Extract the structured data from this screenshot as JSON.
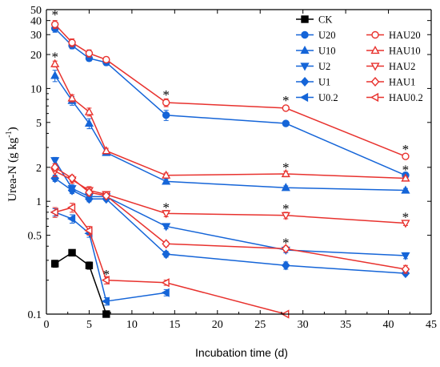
{
  "chart_data": {
    "type": "line",
    "title": "",
    "xlabel": "Incubation time (d)",
    "ylabel": {
      "main": "Urea-N (g kg",
      "sup": "-1",
      "close": ")"
    },
    "xlim": [
      0,
      45
    ],
    "ylim": [
      0.1,
      50
    ],
    "yscale": "log",
    "x_ticks": [
      0,
      5,
      10,
      15,
      20,
      25,
      30,
      35,
      40,
      45
    ],
    "y_ticks": [
      {
        "v": 0.1,
        "label": "0.1"
      },
      {
        "v": 0.5,
        "label": "0.5"
      },
      {
        "v": 1,
        "label": "1"
      },
      {
        "v": 2,
        "label": "2"
      },
      {
        "v": 5,
        "label": "5"
      },
      {
        "v": 10,
        "label": "10"
      },
      {
        "v": 20,
        "label": "20"
      },
      {
        "v": 30,
        "label": "30"
      },
      {
        "v": 40,
        "label": "40"
      },
      {
        "v": 50,
        "label": "50"
      }
    ],
    "legend_position": "top-right",
    "grid": false,
    "series": [
      {
        "name": "CK",
        "color": "#000000",
        "marker": "square",
        "filled": true,
        "x": [
          1,
          3,
          5,
          7
        ],
        "y": [
          0.28,
          0.35,
          0.27,
          0.1
        ],
        "err": [
          0.02,
          0.02,
          0.02,
          0
        ]
      },
      {
        "name": "U20",
        "color": "#1565d8",
        "marker": "circle",
        "filled": true,
        "x": [
          1,
          3,
          5,
          7,
          14,
          28,
          42
        ],
        "y": [
          34,
          24,
          18.5,
          17,
          5.8,
          4.9,
          1.7
        ],
        "err": [
          2.5,
          1.5,
          1,
          1,
          0.6,
          0.25,
          0.1
        ]
      },
      {
        "name": "U10",
        "color": "#1565d8",
        "marker": "triangle-up",
        "filled": true,
        "x": [
          1,
          3,
          5,
          7,
          14,
          28,
          42
        ],
        "y": [
          13,
          7.8,
          4.9,
          2.7,
          1.5,
          1.32,
          1.25
        ],
        "err": [
          1.5,
          0.7,
          0.5,
          0.15,
          0.08,
          0.05,
          0.05
        ]
      },
      {
        "name": "U2",
        "color": "#1565d8",
        "marker": "triangle-down",
        "filled": true,
        "x": [
          1,
          3,
          5,
          7,
          14,
          28,
          42
        ],
        "y": [
          2.3,
          1.3,
          1.1,
          1.1,
          0.6,
          0.37,
          0.33
        ],
        "err": [
          0.15,
          0.1,
          0.08,
          0.05,
          0.03,
          0.02,
          0.02
        ]
      },
      {
        "name": "U1",
        "color": "#1565d8",
        "marker": "diamond",
        "filled": true,
        "x": [
          1,
          3,
          5,
          7,
          14,
          28,
          42
        ],
        "y": [
          1.6,
          1.25,
          1.05,
          1.05,
          0.34,
          0.27,
          0.23
        ],
        "err": [
          0.1,
          0.08,
          0.06,
          0.04,
          0.02,
          0.02,
          0.01
        ]
      },
      {
        "name": "U0.2",
        "color": "#1565d8",
        "marker": "triangle-left",
        "filled": true,
        "x": [
          1,
          3,
          5,
          7,
          14
        ],
        "y": [
          0.8,
          0.7,
          0.52,
          0.13,
          0.155
        ],
        "err": [
          0.06,
          0.06,
          0.04,
          0.01,
          0.01
        ]
      },
      {
        "name": "HAU20",
        "color": "#e8322e",
        "marker": "circle",
        "filled": false,
        "x": [
          1,
          3,
          5,
          7,
          14,
          28,
          42
        ],
        "y": [
          37,
          25.5,
          20.5,
          18,
          7.5,
          6.7,
          2.5
        ],
        "err": [
          3,
          2,
          1.5,
          1,
          0.6,
          0.3,
          0.12
        ]
      },
      {
        "name": "HAU10",
        "color": "#e8322e",
        "marker": "triangle-up",
        "filled": false,
        "x": [
          1,
          3,
          5,
          7,
          14,
          28,
          42
        ],
        "y": [
          16.5,
          8.2,
          6.2,
          2.8,
          1.7,
          1.75,
          1.6
        ],
        "err": [
          1,
          0.6,
          0.5,
          0.15,
          0.08,
          0.1,
          0.06
        ]
      },
      {
        "name": "HAU2",
        "color": "#e8322e",
        "marker": "triangle-down",
        "filled": false,
        "x": [
          1,
          3,
          5,
          7,
          14,
          28,
          42
        ],
        "y": [
          1.85,
          1.55,
          1.25,
          1.15,
          0.78,
          0.75,
          0.64
        ],
        "err": [
          0.2,
          0.1,
          0.1,
          0.06,
          0.05,
          0.05,
          0.03
        ]
      },
      {
        "name": "HAU1",
        "color": "#e8322e",
        "marker": "diamond",
        "filled": false,
        "x": [
          1,
          3,
          5,
          7,
          14,
          28,
          42
        ],
        "y": [
          2.0,
          1.6,
          1.2,
          1.12,
          0.42,
          0.38,
          0.25
        ],
        "err": [
          0.15,
          0.1,
          0.08,
          0.05,
          0.02,
          0.02,
          0.02
        ]
      },
      {
        "name": "HAU0.2",
        "color": "#e8322e",
        "marker": "triangle-left",
        "filled": false,
        "x": [
          1,
          3,
          5,
          7,
          14,
          28
        ],
        "y": [
          0.8,
          0.88,
          0.55,
          0.2,
          0.19,
          0.1
        ],
        "err": [
          0.08,
          0.08,
          0.05,
          0.015,
          0.01,
          0
        ]
      }
    ],
    "annotations": [
      {
        "text": "*",
        "x": 1,
        "y": 46
      },
      {
        "text": "*",
        "x": 1,
        "y": 19.5
      },
      {
        "text": "*",
        "x": 7,
        "y": 0.23
      },
      {
        "text": "*",
        "x": 14,
        "y": 9
      },
      {
        "text": "*",
        "x": 14,
        "y": 0.9
      },
      {
        "text": "*",
        "x": 28,
        "y": 8
      },
      {
        "text": "*",
        "x": 28,
        "y": 2.05
      },
      {
        "text": "*",
        "x": 28,
        "y": 0.88
      },
      {
        "text": "*",
        "x": 28,
        "y": 0.44
      },
      {
        "text": "*",
        "x": 42,
        "y": 2.95
      },
      {
        "text": "*",
        "x": 42,
        "y": 1.95
      },
      {
        "text": "*",
        "x": 42,
        "y": 0.74
      }
    ]
  }
}
